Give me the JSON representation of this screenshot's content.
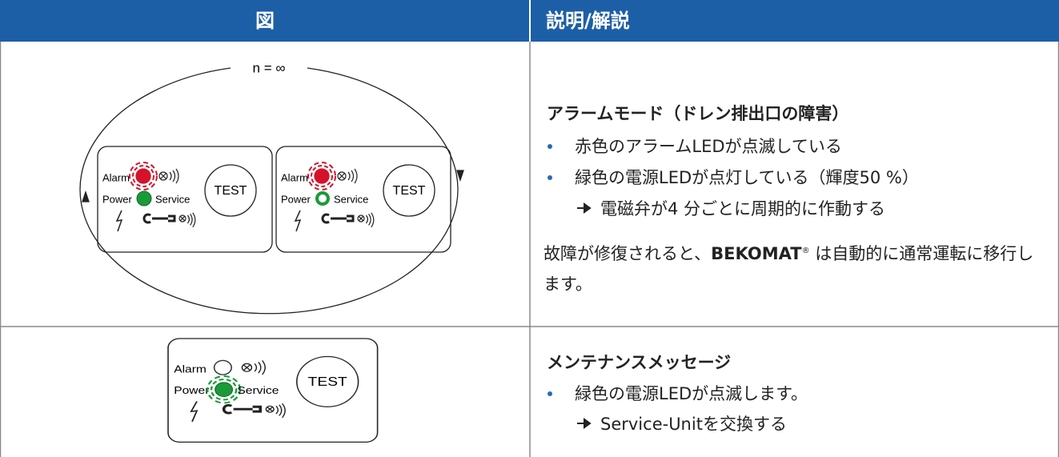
{
  "header": {
    "col1": "図",
    "col2": "説明/解説"
  },
  "rows": [
    {
      "figure": {
        "cycle_label": "n = ∞",
        "panels": [
          {
            "alarm": "Alarm",
            "power": "Power",
            "service": "Service",
            "test": "TEST"
          },
          {
            "alarm": "Alarm",
            "power": "Power",
            "service": "Service",
            "test": "TEST"
          }
        ]
      },
      "description": {
        "title": "アラームモード（ドレン排出口の障害）",
        "bullets": [
          {
            "text": "赤色のアラームLEDが点滅している"
          },
          {
            "text": "緑色の電源LEDが点灯している（輝度50 %）",
            "sub": "電磁弁が4 分ごとに周期的に作動する"
          }
        ],
        "note": {
          "before": "故障が修復されると、",
          "brand": "BEKOMAT",
          "mark": "®",
          "after": " は自動的に通常運転に移行します。"
        }
      }
    },
    {
      "figure": {
        "panels": [
          {
            "alarm": "Alarm",
            "power": "Power",
            "service": "Service",
            "test": "TEST"
          }
        ]
      },
      "description": {
        "title": "メンテナンスメッセージ",
        "bullets": [
          {
            "text": "緑色の電源LEDが点滅します。",
            "sub": "Service-Unitを交換する"
          }
        ]
      }
    }
  ]
}
